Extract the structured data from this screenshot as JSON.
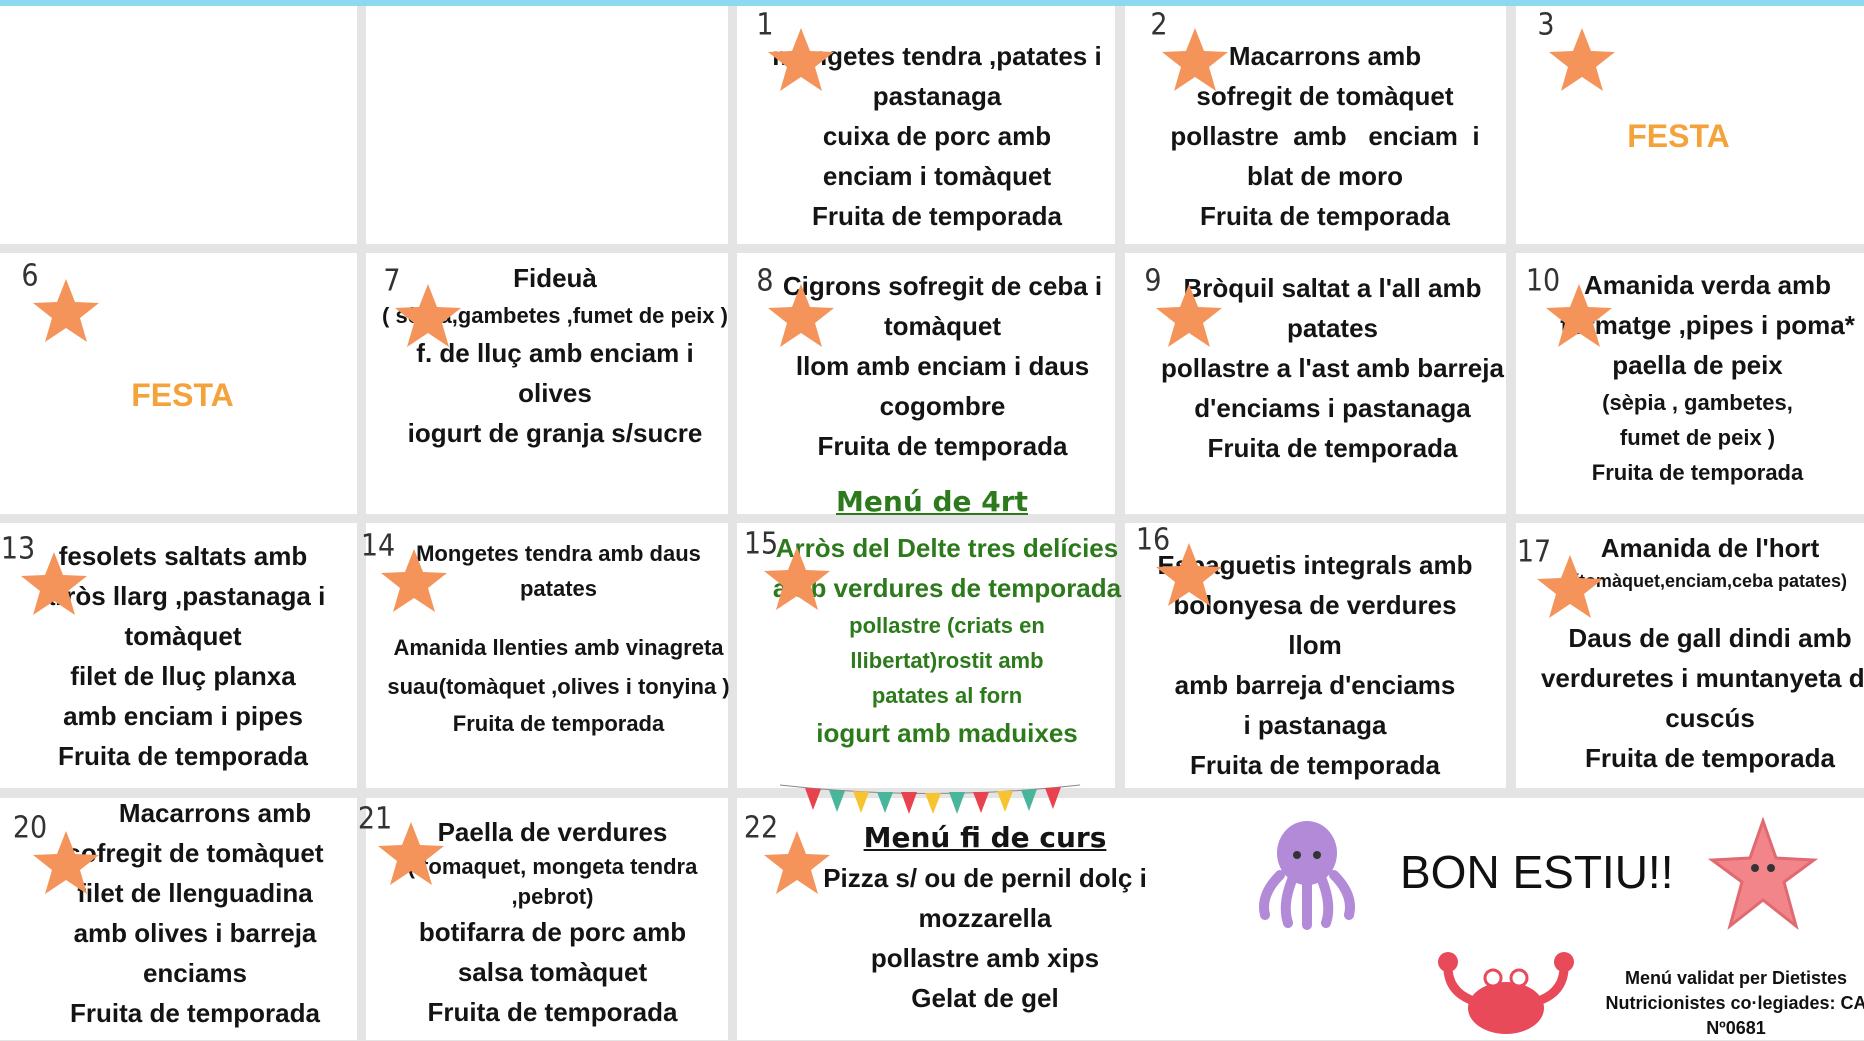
{
  "cells": [
    {
      "day": 1,
      "lines": [
        "mongetes tendra ,patates i",
        "pastanaga",
        "cuixa de porc amb",
        "enciam i tomàquet",
        "Fruita de temporada"
      ]
    },
    {
      "day": 2,
      "lines": [
        "Macarrons amb",
        "sofregit de tomàquet",
        "pollastre  amb   enciam  i",
        "blat de moro",
        "Fruita de temporada"
      ]
    },
    {
      "day": 3,
      "lines": [
        "FESTA"
      ]
    },
    {
      "day": 6,
      "lines": [
        "FESTA"
      ]
    },
    {
      "day": 7,
      "lines": [
        "Fideuà",
        "( sèpia,gambetes ,fumet de peix )",
        "f. de lluç  amb enciam i olives",
        "iogurt de granja s/sucre"
      ]
    },
    {
      "day": 8,
      "lines": [
        "Cigrons  sofregit de ceba i tomàquet",
        "llom  amb enciam i daus cogombre",
        "Fruita de temporada"
      ]
    },
    {
      "day": 9,
      "lines": [
        "Bròquil saltat a l'all amb patates",
        "pollastre a l'ast amb barreja d'enciams i pastanaga",
        "Fruita de temporada"
      ]
    },
    {
      "day": 10,
      "lines": [
        "Amanida verda amb formatge ,pipes i poma*",
        "paella de peix",
        "(sèpia , gambetes, fumet de peix )",
        "Fruita de temporada"
      ]
    },
    {
      "day": 13,
      "lines": [
        "fesolets saltats amb",
        "arròs llarg ,pastanaga i tomàquet",
        "filet de lluç planxa",
        "amb enciam i pipes",
        "Fruita de temporada"
      ]
    },
    {
      "day": 14,
      "lines": [
        "Mongetes tendra amb daus patates",
        "Amanida llenties amb vinagreta suau(tomàquet ,olives i tonyina )",
        "Fruita de temporada"
      ]
    },
    {
      "day": 15,
      "heading": "Menú  de 4rt",
      "lines": [
        "Arròs del Delte tres delícies amb verdures de temporada",
        "pollastre  (criats en llibertat)rostit amb patates al forn",
        "iogurt amb maduixes"
      ]
    },
    {
      "day": 16,
      "lines": [
        "Espaguetis integrals amb",
        "bolonyesa de verdures",
        "llom",
        "amb barreja d'enciams i pastanaga",
        "Fruita de temporada"
      ]
    },
    {
      "day": 17,
      "lines": [
        "Amanida de l'hort",
        "(tomàquet,enciam,ceba patates)",
        "Daus de gall dindi amb verduretes i  muntanyeta de cuscús",
        "Fruita de temporada"
      ]
    },
    {
      "day": 20,
      "lines": [
        "Macarrons amb",
        "sofregit de tomàquet",
        "filet de llenguadina",
        "amb olives i barreja enciams",
        "Fruita de temporada"
      ]
    },
    {
      "day": 21,
      "lines": [
        "Paella de verdures",
        "( tomaquet, mongeta tendra ,pebrot)",
        "botifarra de porc amb",
        "salsa tomàquet",
        "Fruita de temporada"
      ]
    },
    {
      "day": 22,
      "heading": "Menú fi de curs",
      "lines": [
        "Pizza s/ ou de pernil dolç i mozzarella",
        "pollastre amb xips",
        "Gelat de gel"
      ]
    }
  ],
  "closing": {
    "message": "BON ESTIU!!",
    "validation": [
      "Menú validat per Dietistes",
      "Nutricionistes co·legiades: CA",
      "Nº0681"
    ]
  }
}
